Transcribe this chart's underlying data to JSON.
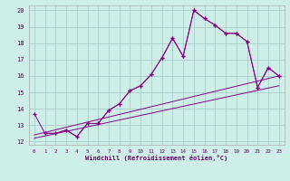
{
  "xlabel": "Windchill (Refroidissement éolien,°C)",
  "bg_color": "#ceeee8",
  "grid_color": "#aacccc",
  "line_color": "#880088",
  "xlim": [
    -0.5,
    23.5
  ],
  "ylim": [
    11.8,
    20.3
  ],
  "yticks": [
    12,
    13,
    14,
    15,
    16,
    17,
    18,
    19,
    20
  ],
  "xticks": [
    0,
    1,
    2,
    3,
    4,
    5,
    6,
    7,
    8,
    9,
    10,
    11,
    12,
    13,
    14,
    15,
    16,
    17,
    18,
    19,
    20,
    21,
    22,
    23
  ],
  "series1": {
    "x": [
      0,
      1,
      2,
      3,
      4,
      5,
      6,
      7,
      8,
      9,
      10,
      11,
      12,
      13,
      14,
      15,
      16,
      17,
      18,
      19,
      20,
      21,
      22,
      23
    ],
    "y": [
      13.7,
      12.5,
      12.5,
      12.7,
      12.3,
      13.1,
      13.1,
      13.9,
      14.3,
      15.1,
      15.4,
      16.1,
      17.1,
      18.3,
      17.2,
      20.0,
      19.5,
      19.1,
      18.6,
      18.6,
      18.1,
      15.3,
      16.5,
      16.0
    ]
  },
  "series2": {
    "x": [
      1,
      2,
      3,
      4,
      5,
      6,
      7,
      8,
      9,
      10,
      11,
      12,
      13,
      14,
      15,
      16,
      17,
      18,
      19,
      20,
      21,
      22,
      23
    ],
    "y": [
      12.5,
      12.5,
      12.7,
      12.3,
      13.1,
      13.1,
      13.9,
      14.3,
      15.1,
      15.4,
      16.1,
      17.1,
      18.3,
      17.2,
      20.0,
      19.5,
      19.1,
      18.6,
      18.6,
      18.1,
      15.3,
      16.5,
      16.0
    ]
  },
  "line1": {
    "x": [
      0,
      23
    ],
    "y": [
      12.4,
      16.0
    ]
  },
  "line2": {
    "x": [
      0,
      23
    ],
    "y": [
      12.2,
      15.4
    ]
  }
}
